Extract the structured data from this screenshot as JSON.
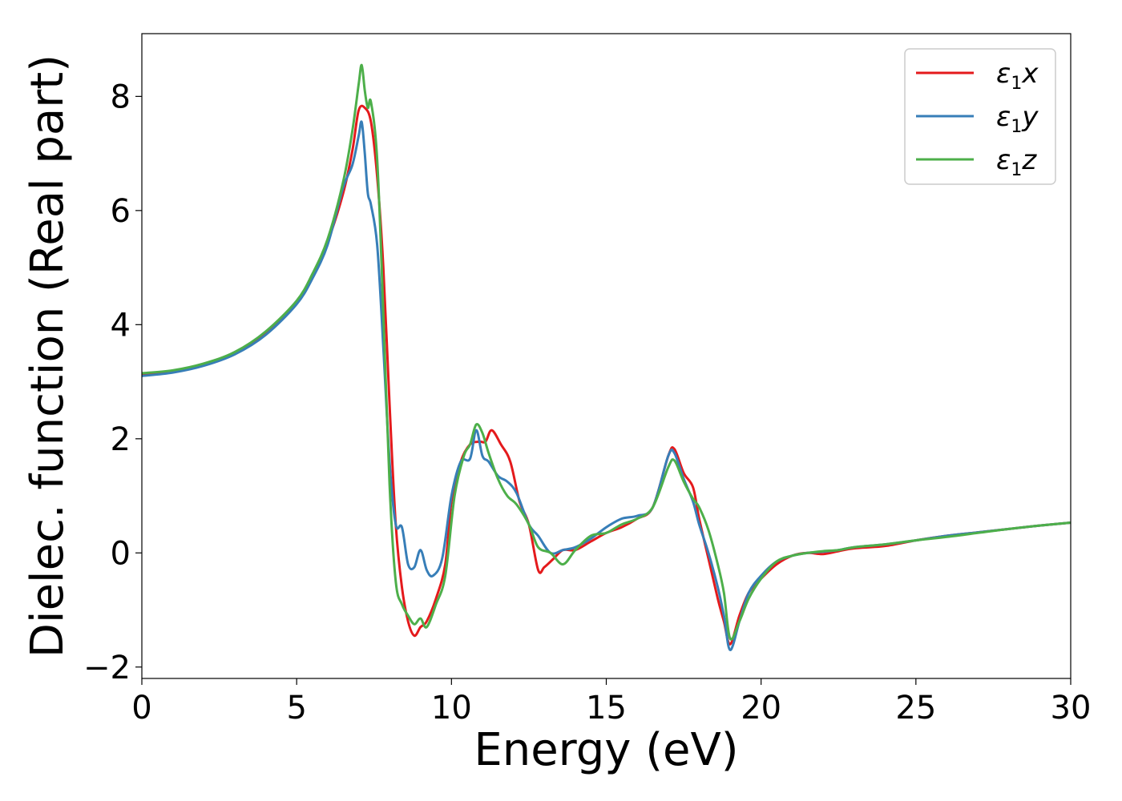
{
  "chart_data": {
    "type": "line",
    "xlabel": "Energy (eV)",
    "ylabel": "Dielec. function (Real part)",
    "xlim": [
      0,
      30
    ],
    "ylim": [
      -2.2,
      9.1
    ],
    "xticks": [
      "0",
      "5",
      "10",
      "15",
      "20",
      "25",
      "30"
    ],
    "yticks": [
      "−2",
      "0",
      "2",
      "4",
      "6",
      "8"
    ],
    "grid": false,
    "legend_position": "top-right",
    "series": [
      {
        "name": "x",
        "legend_symbol": "ε",
        "legend_subscript": "1",
        "color": "#e41a1c",
        "x": [
          0,
          1,
          2,
          3,
          4,
          5,
          5.5,
          6,
          6.5,
          6.8,
          7.0,
          7.2,
          7.4,
          7.6,
          7.8,
          8.0,
          8.2,
          8.4,
          8.6,
          8.8,
          9.0,
          9.2,
          9.5,
          9.8,
          10.0,
          10.3,
          10.6,
          10.9,
          11.1,
          11.3,
          11.6,
          11.9,
          12.2,
          12.5,
          12.8,
          13.0,
          13.3,
          13.6,
          14.0,
          14.5,
          15.0,
          15.5,
          16.0,
          16.5,
          17.0,
          17.2,
          17.5,
          17.8,
          18.0,
          18.3,
          18.6,
          18.8,
          19.0,
          19.3,
          19.6,
          20.0,
          20.5,
          21.0,
          21.5,
          22.0,
          22.5,
          23.0,
          24.0,
          25.0,
          26.0,
          27.0,
          28.0,
          29.0,
          30.0
        ],
        "values": [
          3.12,
          3.18,
          3.3,
          3.5,
          3.85,
          4.4,
          4.85,
          5.45,
          6.3,
          7.05,
          7.75,
          7.8,
          7.55,
          6.6,
          5.0,
          2.6,
          0.5,
          -0.6,
          -1.2,
          -1.45,
          -1.3,
          -1.2,
          -0.8,
          -0.2,
          0.9,
          1.6,
          1.9,
          1.95,
          1.95,
          2.15,
          1.9,
          1.6,
          0.9,
          0.5,
          -0.3,
          -0.25,
          -0.1,
          0.05,
          0.05,
          0.2,
          0.35,
          0.45,
          0.6,
          0.8,
          1.7,
          1.82,
          1.4,
          1.15,
          0.6,
          -0.1,
          -0.8,
          -1.2,
          -1.6,
          -1.1,
          -0.7,
          -0.45,
          -0.2,
          -0.05,
          0.0,
          -0.02,
          0.03,
          0.08,
          0.12,
          0.22,
          0.3,
          0.36,
          0.42,
          0.48,
          0.53
        ]
      },
      {
        "name": "y",
        "legend_symbol": "ε",
        "legend_subscript": "1",
        "color": "#377eb8",
        "x": [
          0,
          1,
          2,
          3,
          4,
          5,
          5.5,
          6,
          6.5,
          6.8,
          7.0,
          7.1,
          7.2,
          7.3,
          7.4,
          7.6,
          7.8,
          8.0,
          8.2,
          8.4,
          8.6,
          8.8,
          9.0,
          9.2,
          9.4,
          9.7,
          10.0,
          10.3,
          10.6,
          10.8,
          11.0,
          11.2,
          11.5,
          11.8,
          12.1,
          12.5,
          12.8,
          13.2,
          13.6,
          14.0,
          14.5,
          15.0,
          15.5,
          16.0,
          16.5,
          17.0,
          17.2,
          17.5,
          17.8,
          18.0,
          18.3,
          18.6,
          18.8,
          19.0,
          19.3,
          19.6,
          20.0,
          20.5,
          21.0,
          21.5,
          22.0,
          22.5,
          23.0,
          24.0,
          25.0,
          26.0,
          27.0,
          28.0,
          29.0,
          30.0
        ],
        "values": [
          3.1,
          3.16,
          3.28,
          3.48,
          3.82,
          4.36,
          4.8,
          5.4,
          6.4,
          6.8,
          7.3,
          7.55,
          7.0,
          6.3,
          6.1,
          5.4,
          3.6,
          1.6,
          0.5,
          0.45,
          -0.2,
          -0.25,
          0.05,
          -0.3,
          -0.4,
          -0.1,
          1.0,
          1.6,
          1.65,
          2.15,
          1.7,
          1.6,
          1.35,
          1.25,
          1.05,
          0.5,
          0.3,
          0.0,
          0.05,
          0.1,
          0.25,
          0.45,
          0.6,
          0.65,
          0.8,
          1.7,
          1.75,
          1.3,
          0.9,
          0.5,
          0.0,
          -0.6,
          -1.1,
          -1.7,
          -1.2,
          -0.7,
          -0.4,
          -0.15,
          -0.05,
          0.0,
          0.02,
          0.05,
          0.1,
          0.15,
          0.22,
          0.3,
          0.36,
          0.42,
          0.48,
          0.53
        ]
      },
      {
        "name": "z",
        "legend_symbol": "ε",
        "legend_subscript": "1",
        "color": "#4daf4a",
        "x": [
          0,
          1,
          2,
          3,
          4,
          5,
          5.5,
          6,
          6.5,
          6.8,
          7.0,
          7.1,
          7.2,
          7.3,
          7.4,
          7.6,
          7.8,
          8.0,
          8.2,
          8.4,
          8.6,
          8.8,
          9.0,
          9.2,
          9.5,
          9.8,
          10.1,
          10.4,
          10.6,
          10.8,
          11.0,
          11.2,
          11.5,
          11.8,
          12.1,
          12.5,
          12.8,
          13.2,
          13.6,
          14.0,
          14.5,
          15.0,
          15.5,
          16.0,
          16.5,
          17.0,
          17.2,
          17.5,
          17.8,
          18.0,
          18.3,
          18.6,
          18.8,
          19.0,
          19.3,
          19.6,
          20.0,
          20.5,
          21.0,
          21.5,
          22.0,
          22.5,
          23.0,
          24.0,
          25.0,
          26.0,
          27.0,
          28.0,
          29.0,
          30.0
        ],
        "values": [
          3.15,
          3.2,
          3.32,
          3.52,
          3.88,
          4.42,
          4.88,
          5.5,
          6.5,
          7.4,
          8.2,
          8.55,
          8.1,
          7.8,
          7.9,
          6.9,
          4.2,
          1.2,
          -0.5,
          -0.9,
          -1.1,
          -1.25,
          -1.15,
          -1.3,
          -0.9,
          -0.4,
          1.0,
          1.7,
          1.9,
          2.25,
          2.1,
          1.75,
          1.3,
          1.0,
          0.85,
          0.5,
          0.1,
          0.0,
          -0.2,
          0.05,
          0.3,
          0.35,
          0.5,
          0.6,
          0.8,
          1.5,
          1.62,
          1.25,
          0.95,
          0.8,
          0.4,
          -0.2,
          -0.7,
          -1.5,
          -1.2,
          -0.8,
          -0.45,
          -0.15,
          -0.05,
          0.0,
          0.03,
          0.05,
          0.1,
          0.15,
          0.22,
          0.28,
          0.35,
          0.42,
          0.48,
          0.53
        ]
      }
    ]
  }
}
